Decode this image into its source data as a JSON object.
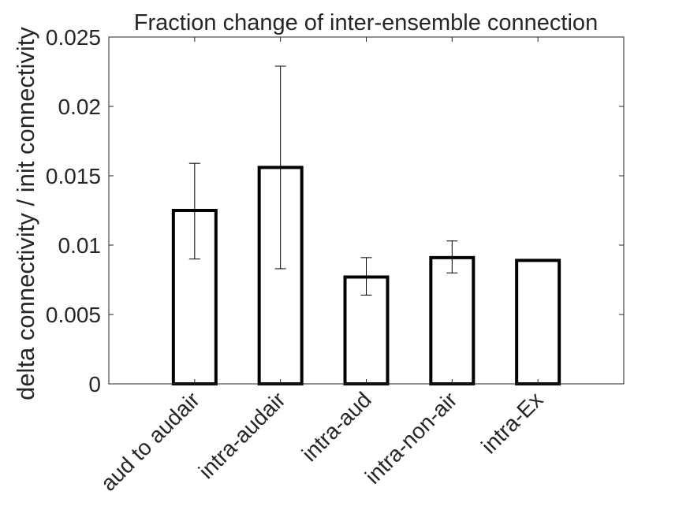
{
  "chart_data": {
    "type": "bar",
    "title": "Fraction change of inter-ensemble connection",
    "xlabel": "",
    "ylabel": "delta connectivity / init connectivity",
    "categories": [
      "aud to audair",
      "intra-audair",
      "intra-aud",
      "intra-non-air",
      "intra-Ex"
    ],
    "values": [
      0.0125,
      0.0156,
      0.0077,
      0.0091,
      0.0089
    ],
    "error_low": [
      0.009,
      0.0083,
      0.0064,
      0.008,
      null
    ],
    "error_high": [
      0.0159,
      0.0229,
      0.0091,
      0.0103,
      null
    ],
    "ylim": [
      0,
      0.025
    ],
    "yticks": [
      0,
      0.005,
      0.01,
      0.015,
      0.02,
      0.025
    ],
    "ytick_labels": [
      "0",
      "0.005",
      "0.01",
      "0.015",
      "0.02",
      "0.025"
    ],
    "grid": false,
    "bar_fill": "#ffffff",
    "bar_edge_color": "#000000",
    "axis_color": "#262626"
  }
}
